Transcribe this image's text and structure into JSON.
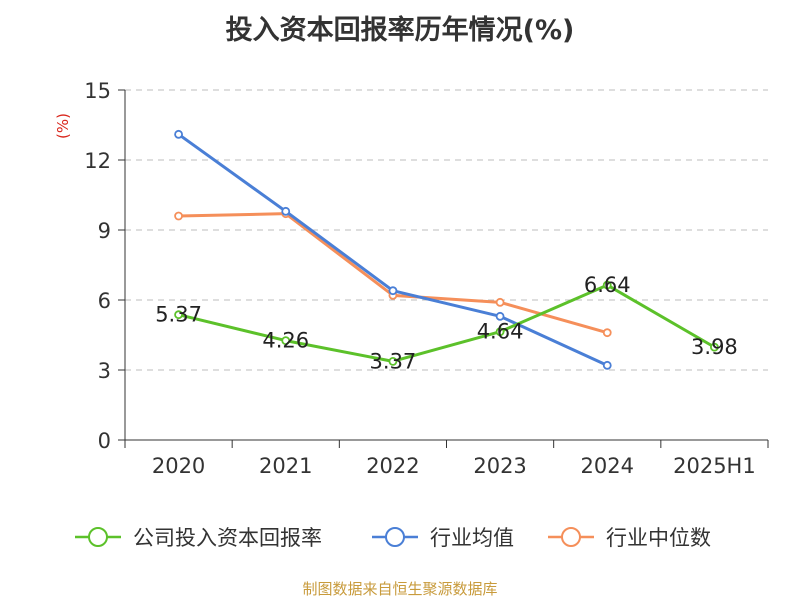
{
  "chart_data": {
    "type": "line",
    "title": "投入资本回报率历年情况(%)",
    "ylabel": "(%)",
    "categories": [
      "2020",
      "2021",
      "2022",
      "2023",
      "2024",
      "2025H1"
    ],
    "yticks": [
      "0",
      "3",
      "6",
      "9",
      "12",
      "15"
    ],
    "ylim": [
      0,
      15
    ],
    "grid": true,
    "legend_position": "bottom",
    "series": [
      {
        "name": "公司投入资本回报率",
        "color": "#5cc12a",
        "values": [
          5.37,
          4.26,
          3.37,
          4.64,
          6.64,
          3.98
        ],
        "labels": [
          "5.37",
          "4.26",
          "3.37",
          "4.64",
          "6.64",
          "3.98"
        ]
      },
      {
        "name": "行业均值",
        "color": "#4a7fd6",
        "values": [
          13.1,
          9.8,
          6.4,
          5.3,
          3.2,
          null
        ]
      },
      {
        "name": "行业中位数",
        "color": "#f58f5a",
        "values": [
          9.6,
          9.7,
          6.2,
          5.9,
          4.6,
          null
        ]
      }
    ]
  },
  "footer": "制图数据来自恒生聚源数据库"
}
